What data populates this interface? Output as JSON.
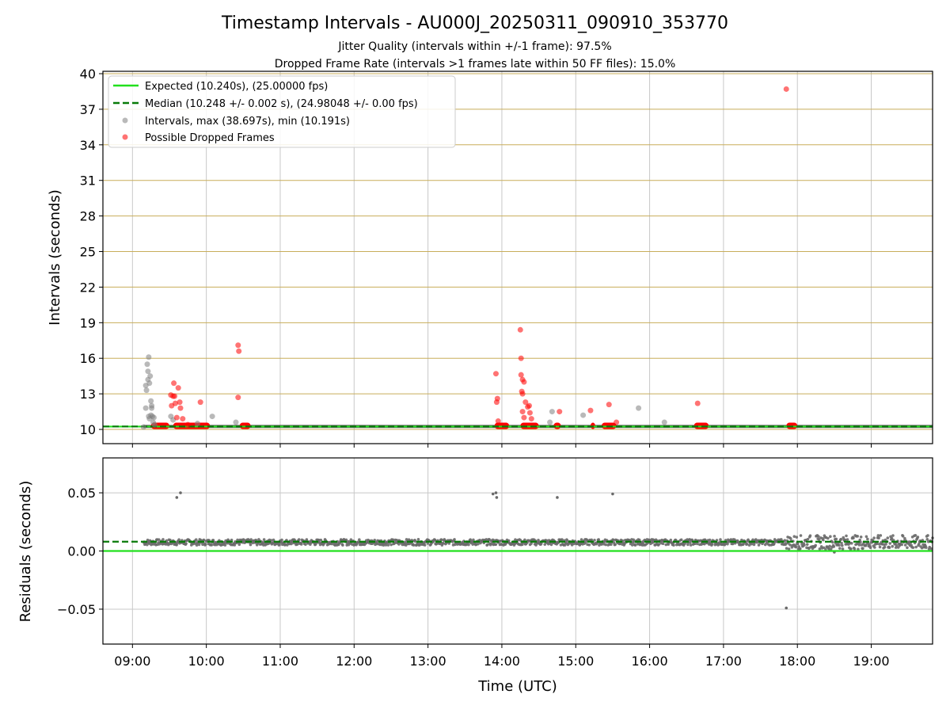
{
  "title": "Timestamp Intervals - AU000J_20250311_090910_353770",
  "subtitle_1": "Jitter Quality (intervals within +/-1 frame): 97.5%",
  "subtitle_2": "Dropped Frame Rate (intervals >1 frames late within 50 FF files): 15.0%",
  "colors": {
    "expected": "#22e01d",
    "median": "#087a08",
    "intervals": "#808080",
    "dropped": "#ff0000",
    "hgrid_top": "#c8ad5a",
    "grid": "#c8c8c8"
  },
  "chart_data": [
    {
      "type": "scatter",
      "panel": "intervals",
      "ylabel": "Intervals (seconds)",
      "xlabel": "",
      "xlim": [
        8.6,
        19.83
      ],
      "ylim": [
        8.8,
        40.2
      ],
      "x_ticks": [
        9,
        10,
        11,
        12,
        13,
        14,
        15,
        16,
        17,
        18,
        19
      ],
      "y_ticks": [
        10,
        13,
        16,
        19,
        22,
        25,
        28,
        31,
        34,
        37,
        40
      ],
      "y_tick_labels": [
        "10",
        "13",
        "16",
        "19",
        "22",
        "25",
        "28",
        "31",
        "34",
        "37",
        "40"
      ],
      "grid": true,
      "legend": {
        "placement": "upper-left",
        "entries": [
          "Expected (10.240s), (25.00000 fps)",
          "Median (10.248 +/- 0.002 s), (24.98048 +/- 0.00 fps)",
          "Intervals, max (38.697s), min (10.191s)",
          "Possible Dropped Frames"
        ]
      },
      "expected_y": 10.24,
      "median_y": 10.248,
      "normal_band": {
        "x_from": 9.15,
        "x_to": 19.83,
        "y_from": 10.12,
        "y_to": 10.38
      },
      "dropped_clusters": [
        [
          9.25,
          9.5
        ],
        [
          9.55,
          10.05
        ],
        [
          10.45,
          10.6
        ],
        [
          13.9,
          14.1
        ],
        [
          14.25,
          14.5
        ],
        [
          14.7,
          14.8
        ],
        [
          15.2,
          15.25
        ],
        [
          15.35,
          15.55
        ],
        [
          16.6,
          16.8
        ],
        [
          17.85,
          18.0
        ]
      ],
      "intervals_points": [
        [
          9.15,
          10.2
        ],
        [
          9.18,
          11.8
        ],
        [
          9.18,
          13.7
        ],
        [
          9.19,
          13.3
        ],
        [
          9.2,
          15.5
        ],
        [
          9.21,
          14.2
        ],
        [
          9.21,
          14.9
        ],
        [
          9.22,
          16.1
        ],
        [
          9.22,
          11.1
        ],
        [
          9.23,
          10.9
        ],
        [
          9.23,
          13.9
        ],
        [
          9.24,
          14.5
        ],
        [
          9.25,
          11.2
        ],
        [
          9.25,
          12.4
        ],
        [
          9.26,
          12.0
        ],
        [
          9.26,
          11.8
        ],
        [
          9.27,
          11.1
        ],
        [
          9.28,
          10.6
        ],
        [
          9.29,
          11.0
        ],
        [
          9.3,
          10.4
        ],
        [
          9.52,
          11.1
        ],
        [
          9.55,
          10.8
        ],
        [
          9.88,
          10.5
        ],
        [
          10.08,
          11.1
        ],
        [
          10.4,
          10.6
        ],
        [
          14.65,
          10.6
        ],
        [
          14.68,
          11.5
        ],
        [
          15.1,
          11.2
        ],
        [
          15.85,
          11.8
        ],
        [
          16.2,
          10.6
        ]
      ],
      "dropped_points": [
        [
          9.52,
          12.9
        ],
        [
          9.55,
          12.8
        ],
        [
          9.56,
          13.9
        ],
        [
          9.57,
          12.8
        ],
        [
          9.58,
          12.2
        ],
        [
          9.53,
          12.0
        ],
        [
          9.6,
          11.0
        ],
        [
          9.62,
          13.5
        ],
        [
          9.64,
          12.3
        ],
        [
          9.65,
          11.8
        ],
        [
          9.68,
          10.9
        ],
        [
          9.75,
          10.4
        ],
        [
          9.92,
          12.3
        ],
        [
          10.43,
          17.1
        ],
        [
          10.44,
          16.6
        ],
        [
          10.43,
          12.7
        ],
        [
          13.92,
          14.7
        ],
        [
          13.93,
          12.3
        ],
        [
          13.94,
          12.6
        ],
        [
          13.95,
          10.7
        ],
        [
          14.25,
          18.4
        ],
        [
          14.26,
          16.0
        ],
        [
          14.26,
          14.6
        ],
        [
          14.28,
          14.2
        ],
        [
          14.27,
          13.2
        ],
        [
          14.28,
          13.0
        ],
        [
          14.3,
          14.0
        ],
        [
          14.28,
          11.5
        ],
        [
          14.3,
          11.0
        ],
        [
          14.32,
          12.3
        ],
        [
          14.35,
          11.9
        ],
        [
          14.37,
          12.0
        ],
        [
          14.38,
          11.4
        ],
        [
          14.4,
          10.9
        ],
        [
          14.78,
          11.5
        ],
        [
          15.2,
          11.6
        ],
        [
          15.45,
          12.1
        ],
        [
          15.55,
          10.6
        ],
        [
          16.65,
          12.2
        ],
        [
          17.85,
          38.7
        ]
      ]
    },
    {
      "type": "scatter",
      "panel": "residuals",
      "ylabel": "Residuals (seconds)",
      "xlabel": "Time (UTC)",
      "xlim": [
        8.6,
        19.83
      ],
      "ylim": [
        -0.08,
        0.08
      ],
      "x_ticks": [
        9,
        10,
        11,
        12,
        13,
        14,
        15,
        16,
        17,
        18,
        19
      ],
      "x_tick_labels": [
        "09:00",
        "10:00",
        "11:00",
        "12:00",
        "13:00",
        "14:00",
        "15:00",
        "16:00",
        "17:00",
        "18:00",
        "19:00"
      ],
      "y_ticks": [
        -0.05,
        0.0,
        0.05
      ],
      "y_tick_labels": [
        "−0.05",
        "0.00",
        "0.05"
      ],
      "grid": true,
      "expected_y": 0.0,
      "median_y": 0.008,
      "residual_band": {
        "x_from": 9.15,
        "x_to": 19.83,
        "center": 0.0075,
        "spread_early": 0.0025,
        "spread_late_from": 17.85,
        "spread_late": 0.006
      },
      "outliers": [
        [
          9.6,
          0.046
        ],
        [
          9.65,
          0.05
        ],
        [
          13.88,
          0.049
        ],
        [
          13.92,
          0.05
        ],
        [
          13.93,
          0.046
        ],
        [
          14.75,
          0.046
        ],
        [
          15.5,
          0.049
        ],
        [
          17.85,
          -0.049
        ],
        [
          18.5,
          -0.001
        ]
      ]
    }
  ]
}
